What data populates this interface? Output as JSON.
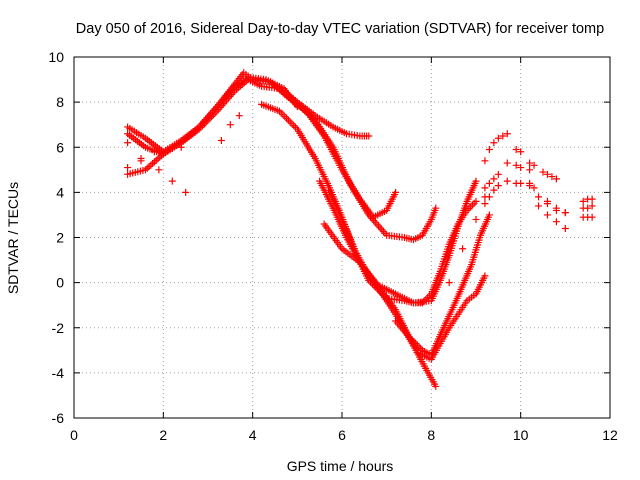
{
  "chart_data": {
    "type": "scatter",
    "title": "Day 050 of 2016, Sidereal Day-to-day VTEC variation (SDTVAR) for receiver tomp",
    "xlabel": "GPS time / hours",
    "ylabel": "SDTVAR / TECUs",
    "xlim": [
      0,
      12
    ],
    "ylim": [
      -6,
      10
    ],
    "x_ticks": [
      0,
      2,
      4,
      6,
      8,
      10,
      12
    ],
    "y_ticks": [
      -6,
      -4,
      -2,
      0,
      2,
      4,
      6,
      8,
      10
    ],
    "grid": true,
    "marker": "+",
    "color": "#ff0000",
    "series": [
      {
        "x": [
          1.2,
          1.6,
          2.0,
          2.4,
          2.8,
          3.2,
          3.6,
          3.8,
          4.0,
          4.4,
          4.8,
          5.2,
          5.6,
          6.0,
          6.4,
          6.7,
          7.0,
          7.2
        ],
        "y": [
          6.9,
          6.4,
          5.8,
          6.3,
          6.9,
          7.8,
          8.8,
          9.3,
          9.0,
          8.9,
          8.2,
          7.6,
          6.5,
          5.0,
          3.7,
          2.9,
          3.2,
          4.0
        ]
      },
      {
        "x": [
          1.2,
          1.6,
          2.0,
          2.4,
          2.8,
          3.2,
          3.6,
          3.9,
          4.2,
          4.6,
          5.0,
          5.4,
          5.8,
          6.2,
          6.6,
          7.0,
          7.4,
          7.6,
          7.8,
          8.0,
          8.1
        ],
        "y": [
          6.6,
          6.0,
          5.7,
          6.2,
          6.8,
          7.6,
          8.5,
          9.0,
          8.7,
          8.6,
          7.9,
          7.2,
          6.0,
          4.3,
          3.0,
          2.1,
          2.0,
          1.9,
          2.1,
          2.8,
          3.3
        ]
      },
      {
        "x": [
          1.2,
          1.5,
          1.9,
          2.2,
          2.5
        ],
        "y": [
          6.2,
          5.4,
          5.0,
          4.5,
          4.0
        ]
      },
      {
        "x": [
          1.2,
          1.6,
          2.0,
          2.4,
          2.8,
          3.2,
          3.6,
          3.9,
          4.3,
          4.7,
          5.0
        ],
        "y": [
          4.8,
          5.0,
          5.7,
          6.2,
          6.9,
          7.8,
          8.7,
          9.1,
          9.0,
          8.6,
          7.8
        ]
      },
      {
        "x": [
          1.2,
          1.5,
          1.8,
          2.1,
          2.4
        ],
        "y": [
          5.1,
          5.5,
          5.8,
          5.9,
          6.0
        ]
      },
      {
        "x": [
          3.3,
          3.5,
          3.7
        ],
        "y": [
          6.3,
          7.0,
          7.4
        ]
      },
      {
        "x": [
          4.7,
          5.0,
          5.4,
          5.8,
          6.1,
          6.4,
          6.6
        ],
        "y": [
          8.5,
          8.0,
          7.4,
          6.9,
          6.6,
          6.5,
          6.5
        ]
      },
      {
        "x": [
          4.2,
          4.6,
          5.0,
          5.4,
          5.7,
          6.0,
          6.3,
          6.6,
          7.0,
          7.4,
          7.6,
          7.8,
          8.0,
          8.2,
          8.4,
          8.6,
          8.8,
          9.0
        ],
        "y": [
          7.9,
          7.6,
          6.8,
          5.5,
          4.3,
          2.9,
          1.3,
          0.1,
          -0.7,
          -0.8,
          -0.9,
          -0.9,
          -0.5,
          0.5,
          1.7,
          2.6,
          3.2,
          3.6
        ]
      },
      {
        "x": [
          5.5,
          5.8,
          6.1,
          6.4,
          6.8,
          7.2,
          7.6,
          8.0,
          8.2,
          8.4,
          8.6,
          8.8,
          9.0
        ],
        "y": [
          4.5,
          3.3,
          2.0,
          0.9,
          -0.1,
          -0.5,
          -0.9,
          -0.8,
          0.1,
          1.2,
          2.5,
          3.6,
          4.5
        ]
      },
      {
        "x": [
          5.7,
          6.0,
          6.3,
          6.6,
          6.9,
          7.2,
          7.5,
          7.8,
          8.0,
          8.3,
          8.6,
          8.9,
          9.1,
          9.3
        ],
        "y": [
          4.1,
          2.8,
          1.4,
          0.3,
          -0.4,
          -1.2,
          -2.4,
          -3.0,
          -3.2,
          -1.9,
          -0.6,
          0.8,
          2.1,
          3.0
        ]
      },
      {
        "x": [
          5.6,
          6.0,
          6.4,
          6.8,
          7.2,
          7.6,
          7.9,
          8.1
        ],
        "y": [
          2.6,
          1.5,
          0.9,
          -0.2,
          -1.4,
          -2.8,
          -3.9,
          -4.6
        ]
      },
      {
        "x": [
          7.2,
          7.5,
          7.7,
          8.0,
          8.2,
          8.4,
          8.6,
          8.8,
          9.0,
          9.2
        ],
        "y": [
          -1.7,
          -2.4,
          -3.1,
          -3.4,
          -2.7,
          -2.0,
          -1.4,
          -0.8,
          -0.5,
          0.3
        ]
      },
      {
        "x": [
          8.4,
          8.7,
          9.0,
          9.2
        ],
        "y": [
          0.0,
          1.5,
          2.8,
          3.8
        ]
      },
      {
        "x": [
          9.2,
          9.3,
          9.4,
          9.5,
          9.6
        ],
        "y": [
          5.4,
          5.9,
          6.2,
          6.4,
          6.5
        ]
      },
      {
        "x": [
          9.2,
          9.3,
          9.4,
          9.5
        ],
        "y": [
          4.2,
          4.4,
          4.6,
          4.8
        ]
      },
      {
        "x": [
          9.2,
          9.3,
          9.4,
          9.5
        ],
        "y": [
          3.5,
          3.8,
          4.1,
          4.3
        ]
      },
      {
        "x": [
          9.7,
          9.9,
          10.0,
          10.2,
          10.3
        ],
        "y": [
          6.6,
          5.9,
          5.8,
          5.3,
          5.2
        ]
      },
      {
        "x": [
          9.7,
          9.9,
          10.0,
          10.2
        ],
        "y": [
          5.3,
          5.2,
          5.1,
          5.0
        ]
      },
      {
        "x": [
          9.7,
          9.9,
          10.0,
          10.2,
          10.3
        ],
        "y": [
          4.5,
          4.4,
          4.4,
          4.3,
          4.2
        ]
      },
      {
        "x": [
          10.5,
          10.6,
          10.7,
          10.8
        ],
        "y": [
          4.9,
          4.8,
          4.7,
          4.6
        ]
      },
      {
        "x": [
          10.2,
          10.4,
          10.6,
          10.8,
          11.0
        ],
        "y": [
          4.4,
          3.8,
          3.5,
          3.2,
          3.1
        ]
      },
      {
        "x": [
          10.4,
          10.6,
          10.8,
          11.0
        ],
        "y": [
          3.4,
          3.0,
          2.7,
          2.4
        ]
      },
      {
        "x": [
          10.6,
          10.8,
          11.0
        ],
        "y": [
          3.6,
          3.3,
          3.1
        ]
      },
      {
        "x": [
          11.4,
          11.5,
          11.6
        ],
        "y": [
          3.6,
          3.7,
          3.7
        ]
      },
      {
        "x": [
          11.4,
          11.5,
          11.6
        ],
        "y": [
          3.3,
          3.3,
          3.4
        ]
      },
      {
        "x": [
          11.4,
          11.5,
          11.6
        ],
        "y": [
          2.9,
          2.9,
          2.9
        ]
      }
    ]
  }
}
